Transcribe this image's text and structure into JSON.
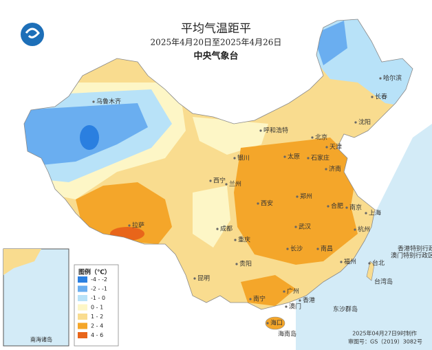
{
  "header": {
    "title": "平均气温距平",
    "subtitle": "2025年4月20日至2025年4月26日",
    "agency": "中央气象台"
  },
  "legend": {
    "title": "图例（℃）",
    "items": [
      {
        "label": "-4 - -2",
        "color": "#2a7fe0"
      },
      {
        "label": "-2 - -1",
        "color": "#6aaef0"
      },
      {
        "label": "-1 - 0",
        "color": "#b8e2f8"
      },
      {
        "label": "0 - 1",
        "color": "#fdf6c6"
      },
      {
        "label": "1 - 2",
        "color": "#f9dc8f"
      },
      {
        "label": "2 - 4",
        "color": "#f4a62a"
      },
      {
        "label": "4 - 6",
        "color": "#e8651a"
      }
    ]
  },
  "cities": [
    "哈尔滨",
    "长春",
    "沈阳",
    "乌鲁木齐",
    "呼和浩特",
    "北京",
    "天津",
    "石家庄",
    "太原",
    "银川",
    "济南",
    "西宁",
    "兰州",
    "郑州",
    "西安",
    "合肥",
    "南京",
    "上海",
    "拉萨",
    "成都",
    "武汉",
    "杭州",
    "重庆",
    "长沙",
    "南昌",
    "贵阳",
    "福州",
    "台北",
    "昆明",
    "南宁",
    "广州",
    "香港",
    "澳门",
    "海口",
    "香港特别行政区",
    "澳门特别行政区",
    "东沙群岛",
    "台湾岛",
    "海南岛"
  ],
  "inset": {
    "label": "南海诸岛"
  },
  "footer": {
    "made": "2025年04月27日9时制作",
    "review": "审图号：GS（2019）3082号"
  }
}
